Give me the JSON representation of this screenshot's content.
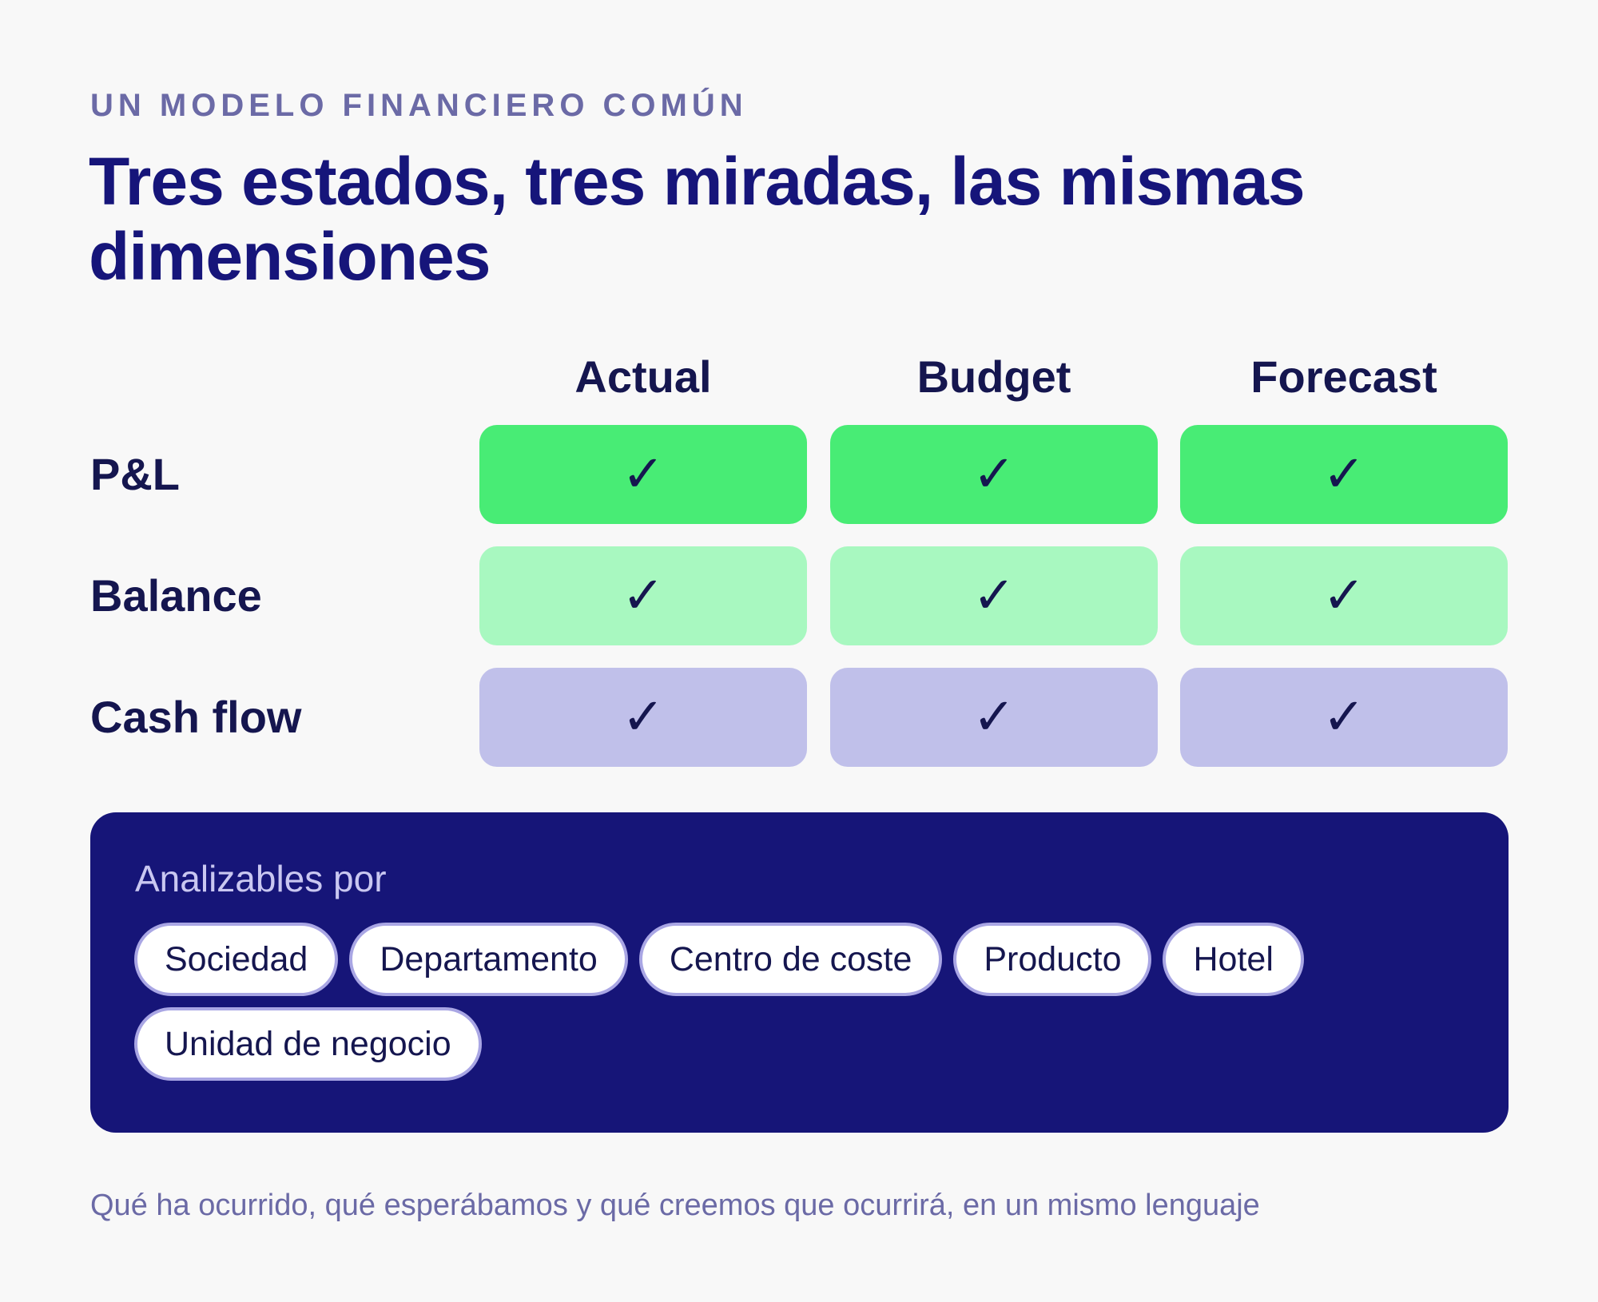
{
  "header": {
    "eyebrow": "UN MODELO FINANCIERO COMÚN",
    "title": "Tres estados, tres miradas, las mismas dimensiones"
  },
  "matrix": {
    "columns": [
      "Actual",
      "Budget",
      "Forecast"
    ],
    "rows": [
      {
        "label": "P&L",
        "tone_color": "#48ec75",
        "cells": [
          "✓",
          "✓",
          "✓"
        ]
      },
      {
        "label": "Balance",
        "tone_color": "#a8f8c0",
        "cells": [
          "✓",
          "✓",
          "✓"
        ]
      },
      {
        "label": "Cash flow",
        "tone_color": "#c0c0ea",
        "cells": [
          "✓",
          "✓",
          "✓"
        ]
      }
    ],
    "check_icon": "checkmark-icon"
  },
  "dimensions": {
    "label": "Analizables por",
    "chips": [
      "Sociedad",
      "Departamento",
      "Centro de coste",
      "Producto",
      "Hotel",
      "Unidad de negocio"
    ],
    "panel_color": "#161578"
  },
  "footnote": "Qué ha ocurrido, qué esperábamos y qué creemos que ocurrirá, en un mismo lenguaje",
  "colors": {
    "ink": "#15164f",
    "title": "#16157a",
    "muted": "#6b6aa6",
    "background": "#f8f8f8"
  }
}
